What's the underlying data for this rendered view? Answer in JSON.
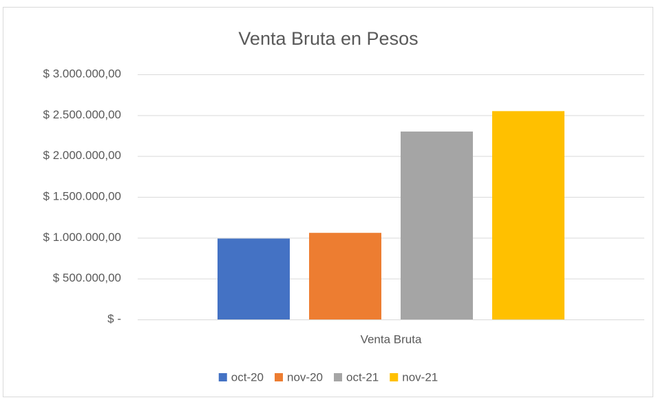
{
  "chart_data": {
    "type": "bar",
    "title": "Venta Bruta en Pesos",
    "categories": [
      "Venta Bruta"
    ],
    "series": [
      {
        "name": "oct-20",
        "color": "#4472c4",
        "values": [
          990000
        ]
      },
      {
        "name": "nov-20",
        "color": "#ed7d31",
        "values": [
          1060000
        ]
      },
      {
        "name": "oct-21",
        "color": "#a5a5a5",
        "values": [
          2300000
        ]
      },
      {
        "name": "nov-21",
        "color": "#ffc000",
        "values": [
          2550000
        ]
      }
    ],
    "ylim": [
      0,
      3000000
    ],
    "yticks": [
      {
        "value": 0,
        "label": "$ -"
      },
      {
        "value": 500000,
        "label": "$ 500.000,00"
      },
      {
        "value": 1000000,
        "label": "$ 1.000.000,00"
      },
      {
        "value": 1500000,
        "label": "$ 1.500.000,00"
      },
      {
        "value": 2000000,
        "label": "$ 2.000.000,00"
      },
      {
        "value": 2500000,
        "label": "$ 2.500.000,00"
      },
      {
        "value": 3000000,
        "label": "$ 3.000.000,00"
      }
    ],
    "grid": true,
    "legend": "bottom"
  }
}
